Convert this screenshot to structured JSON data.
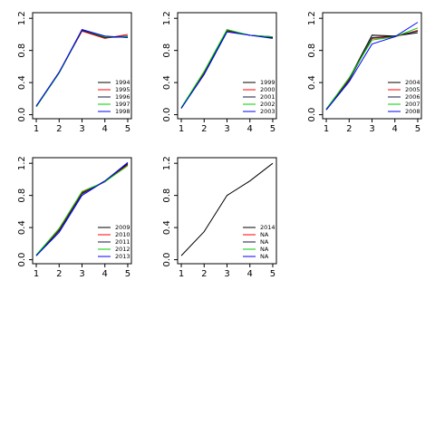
{
  "chart_data": [
    {
      "type": "line",
      "x": [
        1,
        2,
        3,
        4,
        5
      ],
      "xlim": [
        0.84,
        5.16
      ],
      "ylim": [
        -0.05,
        1.27
      ],
      "xticks": [
        1,
        2,
        3,
        4,
        5
      ],
      "yticks": [
        {
          "value": 0,
          "label": "0.0"
        },
        {
          "value": 0.4,
          "label": "0.4"
        },
        {
          "value": 0.8,
          "label": "0.8"
        },
        {
          "value": 1.2,
          "label": "1.2"
        }
      ],
      "legend": "bottomright",
      "series": [
        {
          "name": "1994",
          "color": "#000000",
          "values": [
            0.1,
            0.52,
            1.05,
            0.96,
            0.97
          ]
        },
        {
          "name": "1995",
          "color": "#ff0000",
          "values": [
            0.1,
            0.53,
            1.04,
            0.95,
            1.0
          ]
        },
        {
          "name": "1996",
          "color": "#1a1a40",
          "values": [
            0.1,
            0.52,
            1.05,
            0.96,
            0.98
          ]
        },
        {
          "name": "1997",
          "color": "#00cc00",
          "values": [
            0.1,
            0.52,
            1.06,
            0.97,
            0.97
          ]
        },
        {
          "name": "1998",
          "color": "#0000ff",
          "values": [
            0.11,
            0.53,
            1.06,
            0.98,
            0.96
          ]
        }
      ]
    },
    {
      "type": "line",
      "x": [
        1,
        2,
        3,
        4,
        5
      ],
      "xlim": [
        0.84,
        5.16
      ],
      "ylim": [
        -0.05,
        1.27
      ],
      "xticks": [
        1,
        2,
        3,
        4,
        5
      ],
      "yticks": [
        {
          "value": 0,
          "label": "0.0"
        },
        {
          "value": 0.4,
          "label": "0.4"
        },
        {
          "value": 0.8,
          "label": "0.8"
        },
        {
          "value": 1.2,
          "label": "1.2"
        }
      ],
      "legend": "bottomright",
      "series": [
        {
          "name": "1999",
          "color": "#000000",
          "values": [
            0.08,
            0.52,
            1.05,
            0.99,
            0.96
          ]
        },
        {
          "name": "2000",
          "color": "#ff0000",
          "values": [
            0.08,
            0.52,
            1.04,
            0.99,
            0.97
          ]
        },
        {
          "name": "2001",
          "color": "#1a1a40",
          "values": [
            0.08,
            0.51,
            1.05,
            0.99,
            0.97
          ]
        },
        {
          "name": "2002",
          "color": "#00cc00",
          "values": [
            0.09,
            0.54,
            1.06,
            0.99,
            0.97
          ]
        },
        {
          "name": "2003",
          "color": "#0000ff",
          "values": [
            0.08,
            0.5,
            1.03,
            0.99,
            0.95
          ]
        }
      ]
    },
    {
      "type": "line",
      "x": [
        1,
        2,
        3,
        4,
        5
      ],
      "xlim": [
        0.84,
        5.16
      ],
      "ylim": [
        -0.05,
        1.27
      ],
      "xticks": [
        1,
        2,
        3,
        4,
        5
      ],
      "yticks": [
        {
          "value": 0,
          "label": "0.0"
        },
        {
          "value": 0.4,
          "label": "0.4"
        },
        {
          "value": 0.8,
          "label": "0.8"
        },
        {
          "value": 1.2,
          "label": "1.2"
        }
      ],
      "legend": "bottomright",
      "series": [
        {
          "name": "2004",
          "color": "#000000",
          "values": [
            0.07,
            0.45,
            0.99,
            0.98,
            1.02
          ]
        },
        {
          "name": "2005",
          "color": "#ff0000",
          "values": [
            0.07,
            0.44,
            0.95,
            0.97,
            1.05
          ]
        },
        {
          "name": "2006",
          "color": "#1a1a40",
          "values": [
            0.06,
            0.43,
            0.96,
            0.98,
            1.04
          ]
        },
        {
          "name": "2007",
          "color": "#00cc00",
          "values": [
            0.07,
            0.46,
            0.93,
            0.97,
            1.08
          ]
        },
        {
          "name": "2008",
          "color": "#0000ff",
          "values": [
            0.06,
            0.41,
            0.88,
            0.97,
            1.15
          ]
        }
      ]
    },
    {
      "type": "line",
      "x": [
        1,
        2,
        3,
        4,
        5
      ],
      "xlim": [
        0.84,
        5.16
      ],
      "ylim": [
        -0.05,
        1.27
      ],
      "xticks": [
        1,
        2,
        3,
        4,
        5
      ],
      "yticks": [
        {
          "value": 0,
          "label": "0.0"
        },
        {
          "value": 0.4,
          "label": "0.4"
        },
        {
          "value": 0.8,
          "label": "0.8"
        },
        {
          "value": 1.2,
          "label": "1.2"
        }
      ],
      "legend": "bottomright",
      "series": [
        {
          "name": "2009",
          "color": "#000000",
          "values": [
            0.05,
            0.37,
            0.83,
            0.97,
            1.19
          ]
        },
        {
          "name": "2010",
          "color": "#ff0000",
          "values": [
            0.05,
            0.38,
            0.84,
            0.97,
            1.18
          ]
        },
        {
          "name": "2011",
          "color": "#1a1a40",
          "values": [
            0.05,
            0.36,
            0.82,
            0.98,
            1.2
          ]
        },
        {
          "name": "2012",
          "color": "#00cc00",
          "values": [
            0.06,
            0.39,
            0.85,
            0.97,
            1.17
          ]
        },
        {
          "name": "2013",
          "color": "#0000ff",
          "values": [
            0.05,
            0.34,
            0.8,
            0.98,
            1.21
          ]
        }
      ]
    },
    {
      "type": "line",
      "x": [
        1,
        2,
        3,
        4,
        5
      ],
      "xlim": [
        0.84,
        5.16
      ],
      "ylim": [
        -0.05,
        1.27
      ],
      "xticks": [
        1,
        2,
        3,
        4,
        5
      ],
      "yticks": [
        {
          "value": 0,
          "label": "0.0"
        },
        {
          "value": 0.4,
          "label": "0.4"
        },
        {
          "value": 0.8,
          "label": "0.8"
        },
        {
          "value": 1.2,
          "label": "1.2"
        }
      ],
      "legend": "bottomright",
      "series": [
        {
          "name": "2014",
          "color": "#000000",
          "values": [
            0.05,
            0.35,
            0.8,
            0.98,
            1.2
          ]
        },
        {
          "name": "NA",
          "color": "#ff0000",
          "values": [
            null,
            null,
            null,
            null,
            null
          ]
        },
        {
          "name": "NA",
          "color": "#1a1a40",
          "values": [
            null,
            null,
            null,
            null,
            null
          ]
        },
        {
          "name": "NA",
          "color": "#00cc00",
          "values": [
            null,
            null,
            null,
            null,
            null
          ]
        },
        {
          "name": "NA",
          "color": "#0000ff",
          "values": [
            null,
            null,
            null,
            null,
            null
          ]
        }
      ]
    }
  ]
}
